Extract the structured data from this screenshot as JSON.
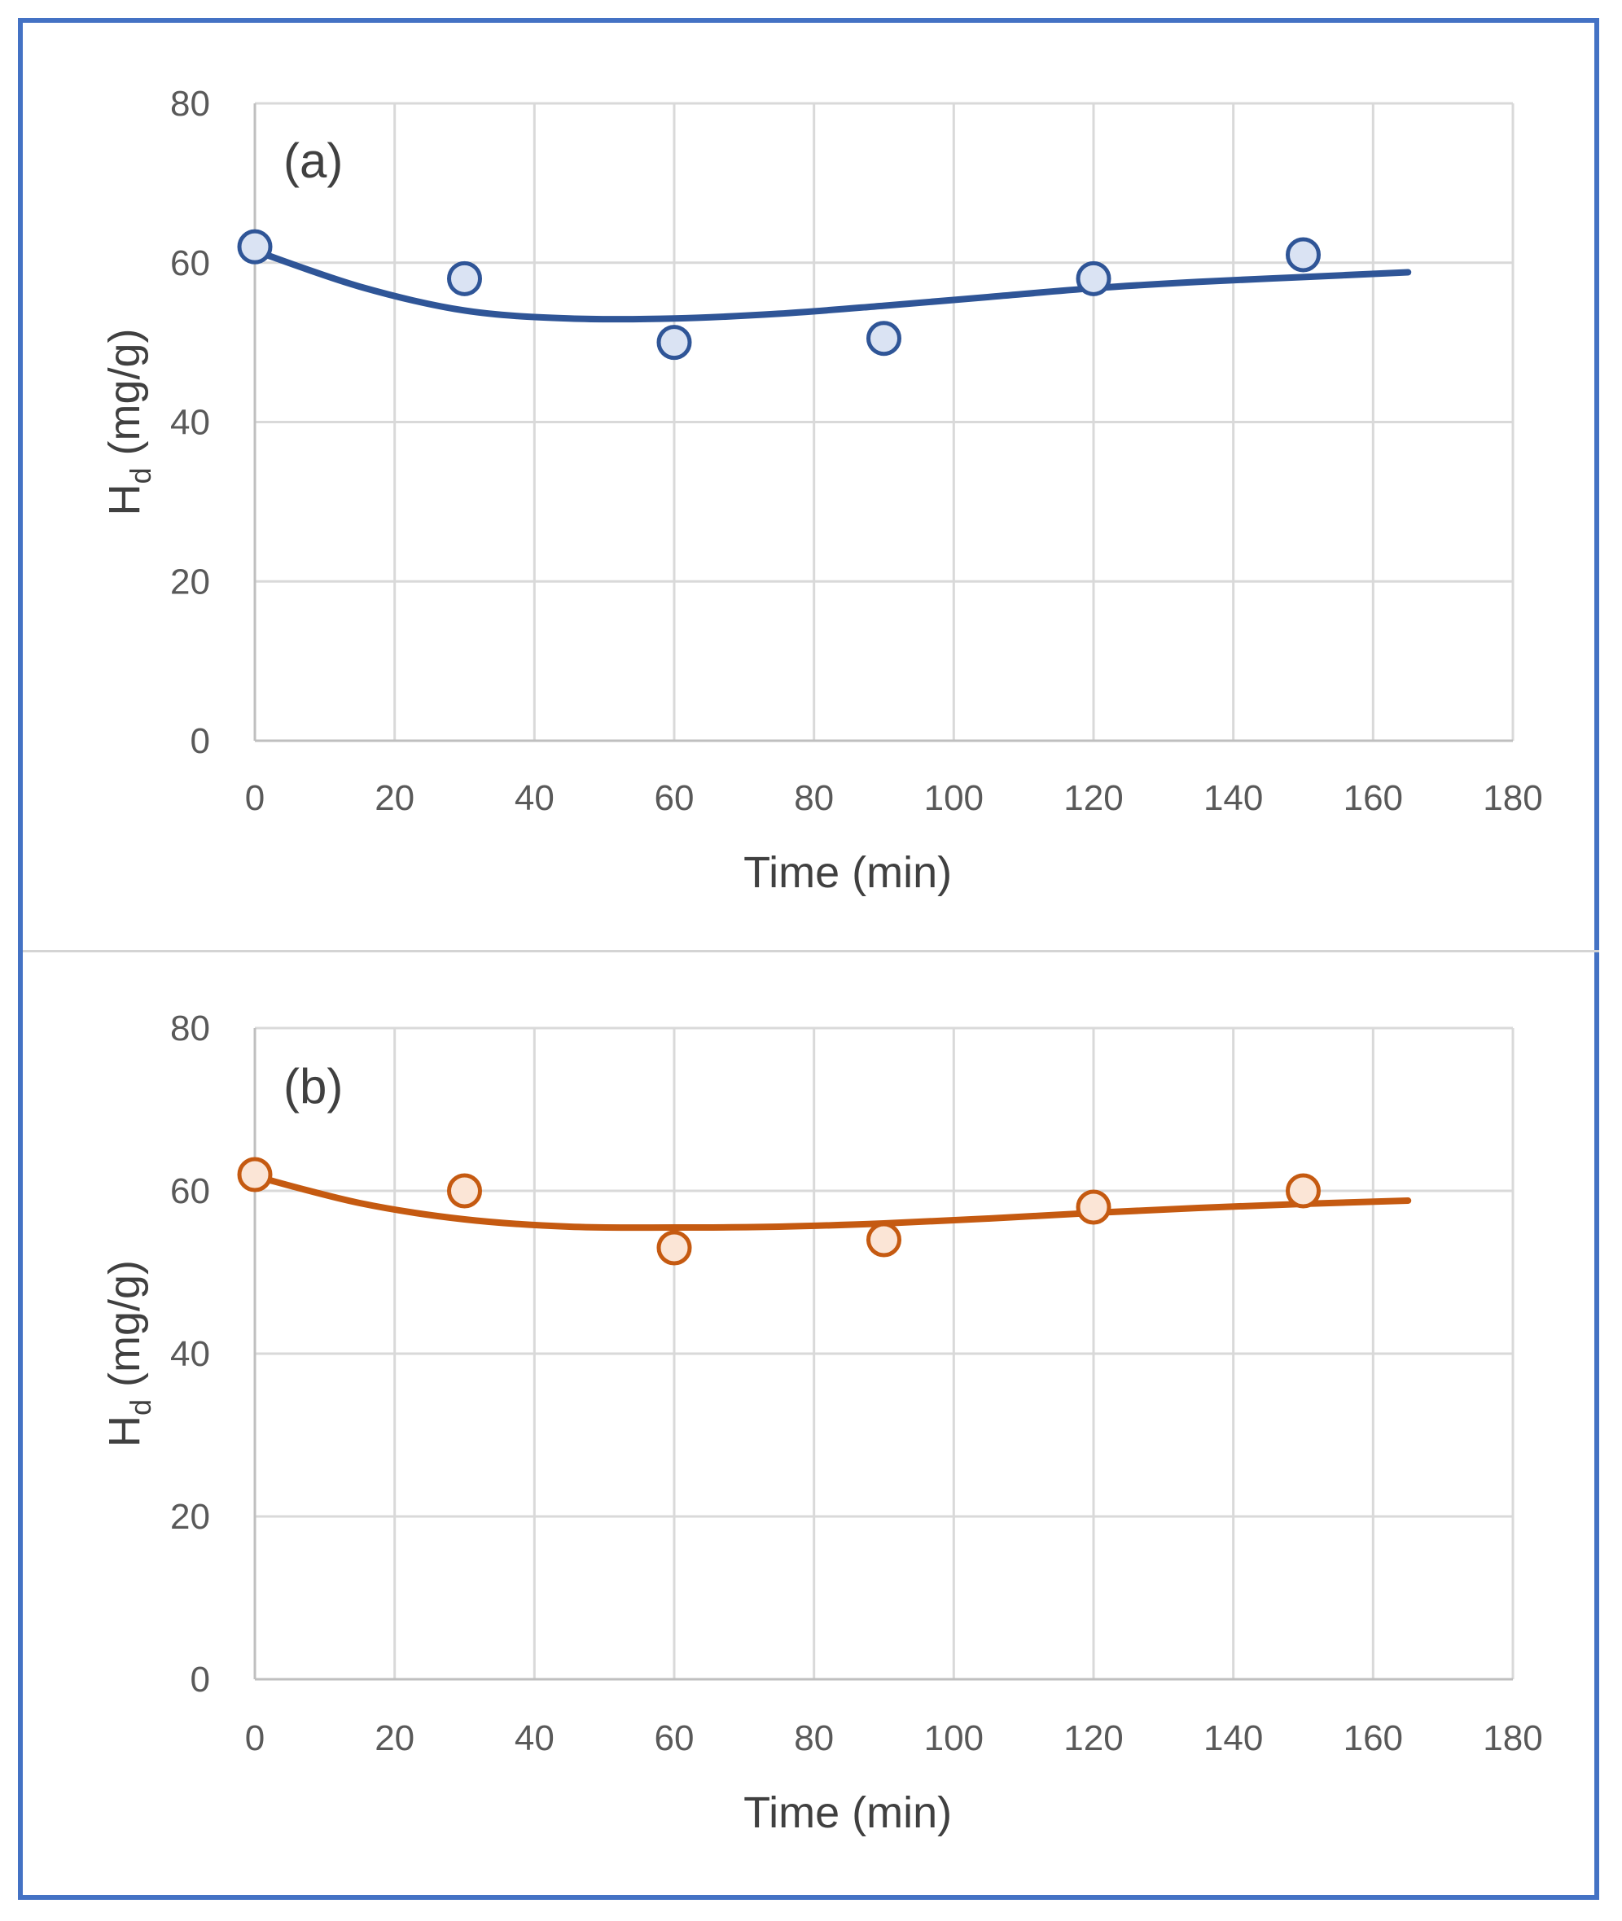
{
  "chart_data": [
    {
      "type": "scatter",
      "panel_label": "(a)",
      "xlabel": "Time (min)",
      "ylabel": {
        "main": "H",
        "sub": "d",
        "units": " (mg/g)"
      },
      "xlim": [
        0,
        180
      ],
      "ylim": [
        0,
        80
      ],
      "xticks": [
        "0",
        "20",
        "40",
        "60",
        "80",
        "100",
        "120",
        "140",
        "160",
        "180"
      ],
      "yticks": [
        "0",
        "20",
        "40",
        "60",
        "80"
      ],
      "grid": true,
      "colors": {
        "line": "#2F5597",
        "marker_fill": "#DAE3F3",
        "marker_edge": "#2F5597"
      },
      "points": {
        "x": [
          0,
          30,
          60,
          90,
          120,
          150
        ],
        "y": [
          62,
          58,
          50,
          50.5,
          58,
          61
        ]
      },
      "trend": {
        "x": [
          0,
          15,
          30,
          45,
          60,
          75,
          90,
          105,
          120,
          135,
          150,
          165
        ],
        "y": [
          61.5,
          57,
          54,
          53,
          53,
          53.6,
          54.6,
          55.7,
          56.8,
          57.6,
          58.2,
          58.8
        ]
      }
    },
    {
      "type": "scatter",
      "panel_label": "(b)",
      "xlabel": "Time (min)",
      "ylabel": {
        "main": "H",
        "sub": "d",
        "units": " (mg/g)"
      },
      "xlim": [
        0,
        180
      ],
      "ylim": [
        0,
        80
      ],
      "xticks": [
        "0",
        "20",
        "40",
        "60",
        "80",
        "100",
        "120",
        "140",
        "160",
        "180"
      ],
      "yticks": [
        "0",
        "20",
        "40",
        "60",
        "80"
      ],
      "grid": true,
      "colors": {
        "line": "#C55A11",
        "marker_fill": "#FBE5D6",
        "marker_edge": "#C55A11"
      },
      "points": {
        "x": [
          0,
          30,
          60,
          90,
          120,
          150
        ],
        "y": [
          62,
          60,
          53,
          54,
          58,
          60
        ]
      },
      "trend": {
        "x": [
          0,
          15,
          30,
          45,
          60,
          75,
          90,
          105,
          120,
          135,
          150,
          165
        ],
        "y": [
          61.8,
          58.5,
          56.5,
          55.6,
          55.5,
          55.6,
          56,
          56.6,
          57.3,
          57.9,
          58.4,
          58.8
        ]
      }
    }
  ]
}
